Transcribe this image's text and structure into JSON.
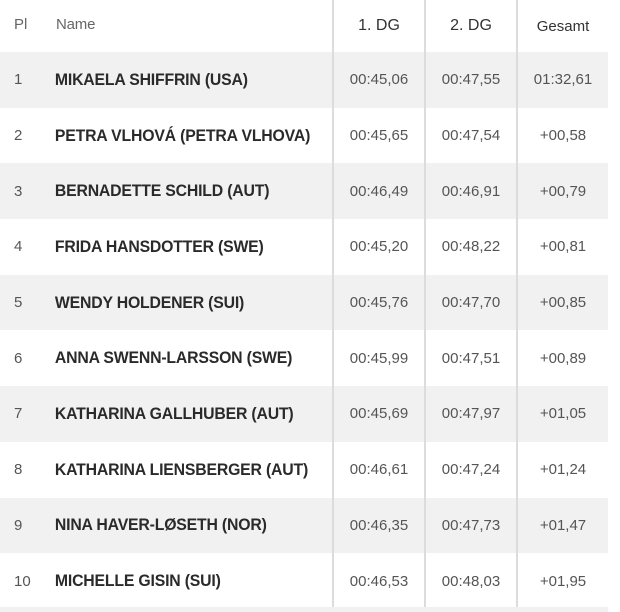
{
  "columns": {
    "pl": "Pl",
    "name": "Name",
    "dg1": "1. DG",
    "dg2": "2. DG",
    "total": "Gesamt"
  },
  "rows": [
    {
      "pl": "1",
      "name": "MIKAELA SHIFFRIN (USA)",
      "dg1": "00:45,06",
      "dg2": "00:47,55",
      "total": "01:32,61"
    },
    {
      "pl": "2",
      "name": "PETRA VLHOVÁ (PETRA VLHOVA)",
      "dg1": "00:45,65",
      "dg2": "00:47,54",
      "total": "+00,58"
    },
    {
      "pl": "3",
      "name": "BERNADETTE SCHILD (AUT)",
      "dg1": "00:46,49",
      "dg2": "00:46,91",
      "total": "+00,79"
    },
    {
      "pl": "4",
      "name": "FRIDA HANSDOTTER (SWE)",
      "dg1": "00:45,20",
      "dg2": "00:48,22",
      "total": "+00,81"
    },
    {
      "pl": "5",
      "name": "WENDY HOLDENER (SUI)",
      "dg1": "00:45,76",
      "dg2": "00:47,70",
      "total": "+00,85"
    },
    {
      "pl": "6",
      "name": "ANNA SWENN-LARSSON (SWE)",
      "dg1": "00:45,99",
      "dg2": "00:47,51",
      "total": "+00,89"
    },
    {
      "pl": "7",
      "name": "KATHARINA GALLHUBER (AUT)",
      "dg1": "00:45,69",
      "dg2": "00:47,97",
      "total": "+01,05"
    },
    {
      "pl": "8",
      "name": "KATHARINA LIENSBERGER (AUT)",
      "dg1": "00:46,61",
      "dg2": "00:47,24",
      "total": "+01,24"
    },
    {
      "pl": "9",
      "name": "NINA HAVER-LØSETH (NOR)",
      "dg1": "00:46,35",
      "dg2": "00:47,73",
      "total": "+01,47"
    },
    {
      "pl": "10",
      "name": "MICHELLE GISIN (SUI)",
      "dg1": "00:46,53",
      "dg2": "00:48,03",
      "total": "+01,95"
    }
  ]
}
